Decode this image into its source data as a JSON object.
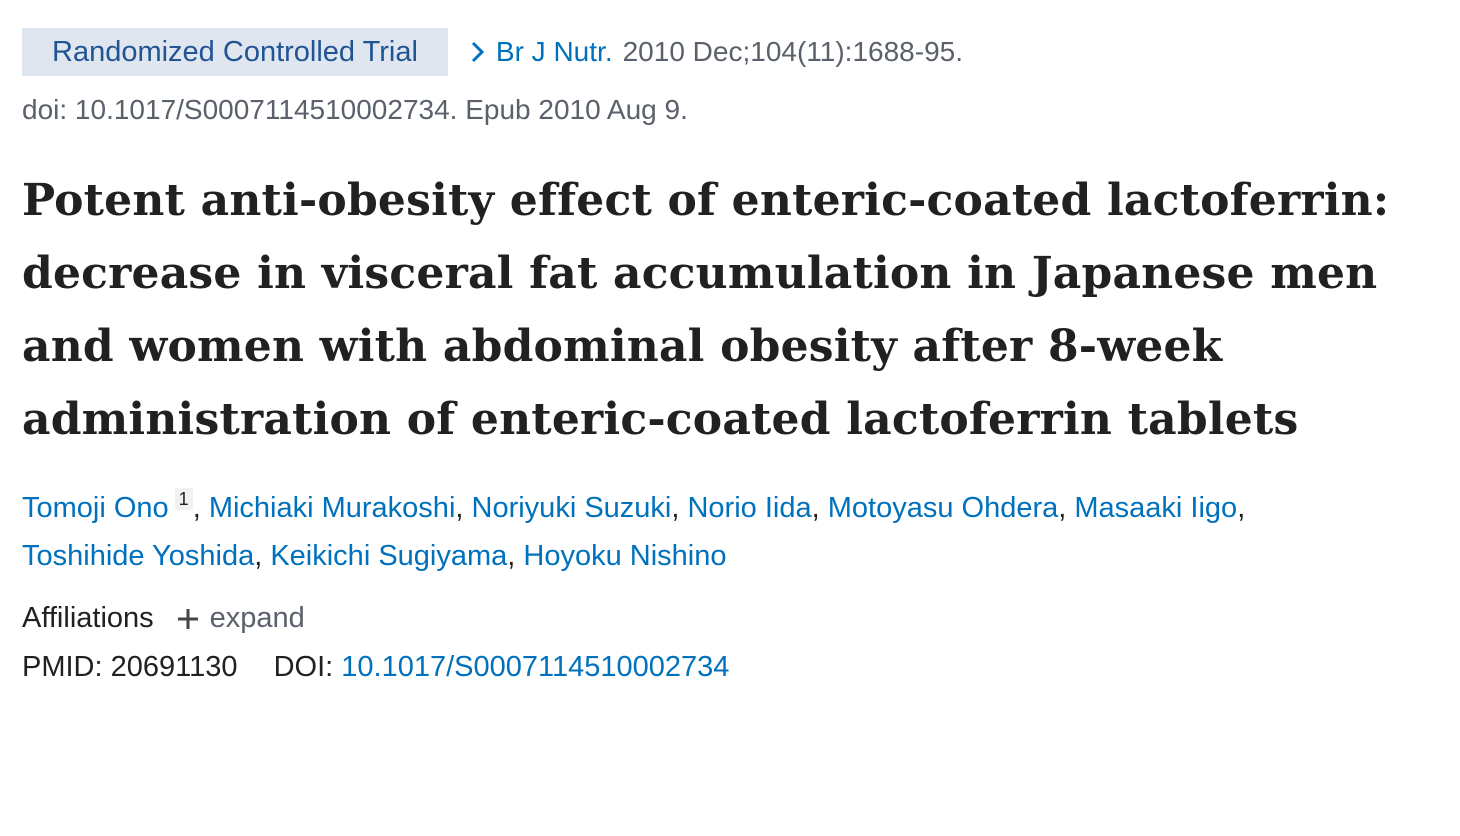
{
  "header": {
    "badge": "Randomized Controlled Trial",
    "journal": "Br J Nutr.",
    "citation": "2010 Dec;104(11):1688-95.",
    "doi_line": "doi: 10.1017/S0007114510002734. Epub 2010 Aug 9."
  },
  "title": "Potent anti-obesity effect of enteric-coated lactoferrin: decrease in visceral fat accumulation in Japanese men and women with abdominal obesity after 8-week administration of enteric-coated lactoferrin tablets",
  "authors": {
    "separator": ",",
    "list": [
      {
        "name": "Tomoji Ono",
        "sup": "1"
      },
      {
        "name": "Michiaki Murakoshi"
      },
      {
        "name": "Noriyuki Suzuki"
      },
      {
        "name": "Norio Iida"
      },
      {
        "name": "Motoyasu Ohdera"
      },
      {
        "name": "Masaaki Iigo"
      },
      {
        "name": "Toshihide Yoshida"
      },
      {
        "name": "Keikichi Sugiyama"
      },
      {
        "name": "Hoyoku Nishino"
      }
    ]
  },
  "affiliations": {
    "label": "Affiliations",
    "toggle": "expand"
  },
  "identifiers": {
    "pmid_label": "PMID:",
    "pmid": "20691130",
    "doi_label": "DOI:",
    "doi": "10.1017/S0007114510002734"
  }
}
